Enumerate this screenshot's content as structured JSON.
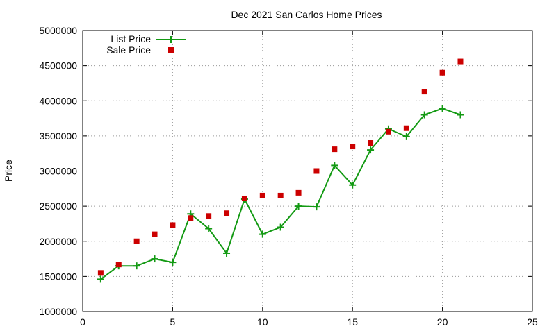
{
  "chart_data": {
    "type": "line",
    "title": "Dec 2021 San Carlos Home Prices",
    "xlabel": "",
    "ylabel": "Price",
    "xlim": [
      0,
      25
    ],
    "ylim": [
      1000000,
      5000000
    ],
    "x_ticks": [
      0,
      5,
      10,
      15,
      20,
      25
    ],
    "y_ticks": [
      1000000,
      1500000,
      2000000,
      2500000,
      3000000,
      3500000,
      4000000,
      4500000,
      5000000
    ],
    "grid": true,
    "legend_position": "top-left",
    "series": [
      {
        "name": "List Price",
        "style": "line-with-plus-markers",
        "color": "#139a13",
        "x": [
          1,
          2,
          3,
          4,
          5,
          6,
          7,
          8,
          9,
          10,
          11,
          12,
          13,
          14,
          15,
          16,
          17,
          18,
          19,
          20,
          21
        ],
        "y": [
          1460000,
          1650000,
          1650000,
          1750000,
          1700000,
          2390000,
          2180000,
          1830000,
          2600000,
          2100000,
          2200000,
          2500000,
          2490000,
          3080000,
          2800000,
          3300000,
          3600000,
          3490000,
          3800000,
          3890000,
          3800000
        ]
      },
      {
        "name": "Sale Price",
        "style": "square-markers",
        "color": "#cc0000",
        "x": [
          1,
          2,
          3,
          4,
          5,
          6,
          7,
          8,
          9,
          10,
          11,
          12,
          13,
          14,
          15,
          16,
          17,
          18,
          19,
          20,
          21
        ],
        "y": [
          1550000,
          1670000,
          2000000,
          2100000,
          2230000,
          2330000,
          2360000,
          2400000,
          2610000,
          2650000,
          2650000,
          2690000,
          3000000,
          3310000,
          3350000,
          3400000,
          3560000,
          3610000,
          4130000,
          4400000,
          4560000
        ]
      }
    ]
  }
}
